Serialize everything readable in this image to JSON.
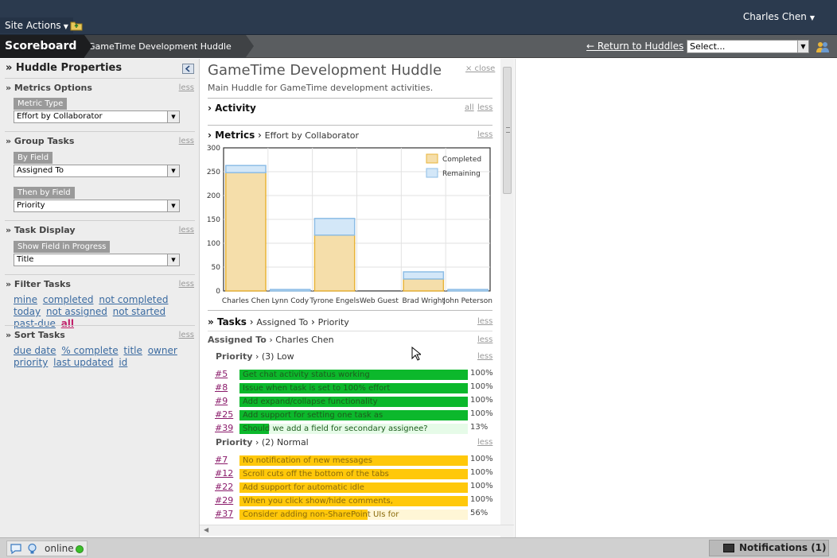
{
  "topbar": {
    "site_actions": "Site Actions",
    "user_name": "Charles Chen"
  },
  "breadcrumb": {
    "root": "Scoreboard",
    "current": "GameTime Development Huddle",
    "return_link": "← Return to Huddles",
    "select_value": "Select..."
  },
  "sidebar": {
    "title": "» Huddle Properties",
    "less": "less",
    "metrics": {
      "title": "» Metrics Options",
      "metric_type_label": "Metric Type",
      "metric_type_value": "Effort by Collaborator"
    },
    "group": {
      "title": "» Group Tasks",
      "by_field_label": "By Field",
      "by_field_value": "Assigned To",
      "then_by_label": "Then by Field",
      "then_by_value": "Priority"
    },
    "display": {
      "title": "» Task Display",
      "progress_label": "Show Field in Progress",
      "progress_value": "Title"
    },
    "filter": {
      "title": "» Filter Tasks",
      "links": [
        "mine",
        "completed",
        "not completed",
        "today",
        "not assigned",
        "not started",
        "past-due",
        "all"
      ],
      "active": "all"
    },
    "sort": {
      "title": "» Sort Tasks",
      "links": [
        "due date",
        "% complete",
        "title",
        "owner",
        "priority",
        "last updated",
        "id"
      ]
    }
  },
  "main": {
    "title": "GameTime Development Huddle",
    "close": "× close",
    "description": "Main Huddle for GameTime development activities.",
    "activity": {
      "title": "Activity",
      "all": "all",
      "less": "less"
    },
    "metrics": {
      "title": "Metrics",
      "subtitle": "Effort by Collaborator",
      "less": "less"
    },
    "tasks": {
      "title": "Tasks",
      "crumb1": "Assigned To",
      "crumb2": "Priority",
      "less": "less",
      "assigned_label": "Assigned To",
      "assigned_value": "Charles Chen",
      "priority_label": "Priority",
      "groups": [
        {
          "value": "(3) Low",
          "color": "#0cb82c",
          "light": "#e6fbe8",
          "text_color": "#1d5d1d",
          "tasks": [
            {
              "id": "#5",
              "name": "Get chat activity status working",
              "pct": 100,
              "pct_label": "100%"
            },
            {
              "id": "#8",
              "name": "Issue when task is set to 100% effort",
              "pct": 100,
              "pct_label": "100%"
            },
            {
              "id": "#9",
              "name": "Add expand/collapse functionality",
              "pct": 100,
              "pct_label": "100%"
            },
            {
              "id": "#25",
              "name": "Add support for setting one task as",
              "pct": 100,
              "pct_label": "100%"
            },
            {
              "id": "#39",
              "name": "Should we add a field for secondary assignee?",
              "pct": 13,
              "pct_label": "13%"
            }
          ]
        },
        {
          "value": "(2) Normal",
          "color": "#ffc80a",
          "light": "#fff6d6",
          "text_color": "#8a6a0a",
          "tasks": [
            {
              "id": "#7",
              "name": "No notification of new messages",
              "pct": 100,
              "pct_label": "100%"
            },
            {
              "id": "#12",
              "name": "Scroll cuts off the bottom of the tabs",
              "pct": 100,
              "pct_label": "100%"
            },
            {
              "id": "#22",
              "name": "Add support for automatic idle",
              "pct": 100,
              "pct_label": "100%"
            },
            {
              "id": "#29",
              "name": "When you click show/hide comments,",
              "pct": 100,
              "pct_label": "100%"
            },
            {
              "id": "#37",
              "name": "Consider adding non-SharePoint UIs for",
              "pct": 56,
              "pct_label": "56%"
            }
          ]
        }
      ]
    }
  },
  "status": {
    "online": "online",
    "notifications": "Notifications (1)"
  },
  "chart_data": {
    "type": "bar",
    "categories": [
      "Charles Chen",
      "Lynn Cody",
      "Tyrone Engels",
      "Web Guest",
      "Brad Wright",
      "John Peterson"
    ],
    "series": [
      {
        "name": "Completed",
        "values": [
          248,
          0,
          117,
          0,
          25,
          0
        ],
        "color": "#f5deaa",
        "edge": "#e8b43a"
      },
      {
        "name": "Remaining",
        "values": [
          15,
          3,
          35,
          0,
          15,
          3
        ],
        "color": "#d3e7f8",
        "edge": "#8dbde6"
      }
    ],
    "stacked": true,
    "ylim": [
      0,
      300
    ],
    "yticks": [
      0,
      50,
      100,
      150,
      200,
      250,
      300
    ],
    "legend_position": "top-right",
    "grid": true
  }
}
